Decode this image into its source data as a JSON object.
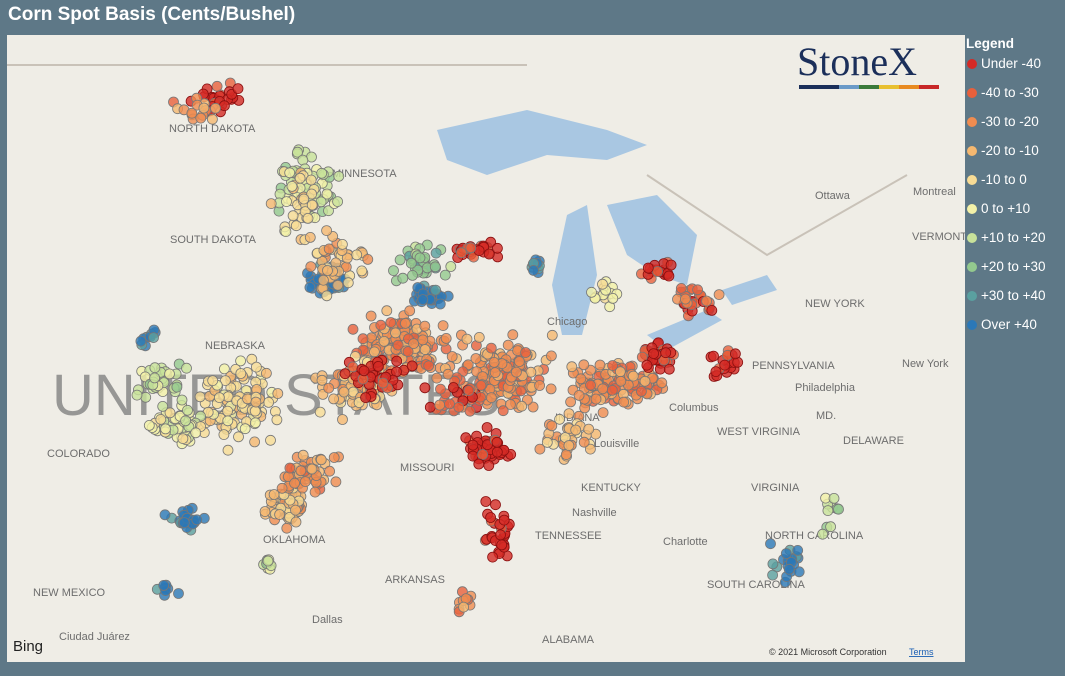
{
  "header": {
    "title": "Corn Spot Basis (Cents/Bushel)"
  },
  "legend": {
    "title": "Legend",
    "items": [
      {
        "label": "Under -40",
        "color": "#d42a26"
      },
      {
        "label": "-40 to -30",
        "color": "#e8603c"
      },
      {
        "label": "-30 to -20",
        "color": "#f08c50"
      },
      {
        "label": "-20 to -10",
        "color": "#f5b870"
      },
      {
        "label": "-10 to 0",
        "color": "#f8dc95"
      },
      {
        "label": "0 to +10",
        "color": "#f3f1a8"
      },
      {
        "label": "+10 to +20",
        "color": "#c8e29a"
      },
      {
        "label": "+20 to +30",
        "color": "#93c98e"
      },
      {
        "label": "+30 to +40",
        "color": "#5aa0a0"
      },
      {
        "label": "Over +40",
        "color": "#2b78b8"
      }
    ]
  },
  "map": {
    "logo": "StoneX",
    "big_label": "UNITED STATES",
    "labels": [
      "NORTH DAKOTA",
      "MINNESOTA",
      "SOUTH DAKOTA",
      "NEBRASKA",
      "COLORADO",
      "MISSOURI",
      "OKLAHOMA",
      "ARKANSAS",
      "NEW MEXICO",
      "Dallas",
      "TENNESSEE",
      "Nashville",
      "KENTUCKY",
      "Louisville",
      "INDIANA",
      "Chicago",
      "Columbus",
      "WEST VIRGINIA",
      "VIRGINIA",
      "PENNSYLVANIA",
      "Philadelphia",
      "NEW YORK",
      "New York",
      "Ottawa",
      "Montreal",
      "VERMONT",
      "MD.",
      "DELAWARE",
      "NORTH CAROLINA",
      "SOUTH CAROLINA",
      "Charlotte",
      "ALABAMA",
      "Ciudad Juárez"
    ],
    "provider": "Bing",
    "copyright": "© 2021 Microsoft Corporation",
    "terms": "Terms"
  }
}
